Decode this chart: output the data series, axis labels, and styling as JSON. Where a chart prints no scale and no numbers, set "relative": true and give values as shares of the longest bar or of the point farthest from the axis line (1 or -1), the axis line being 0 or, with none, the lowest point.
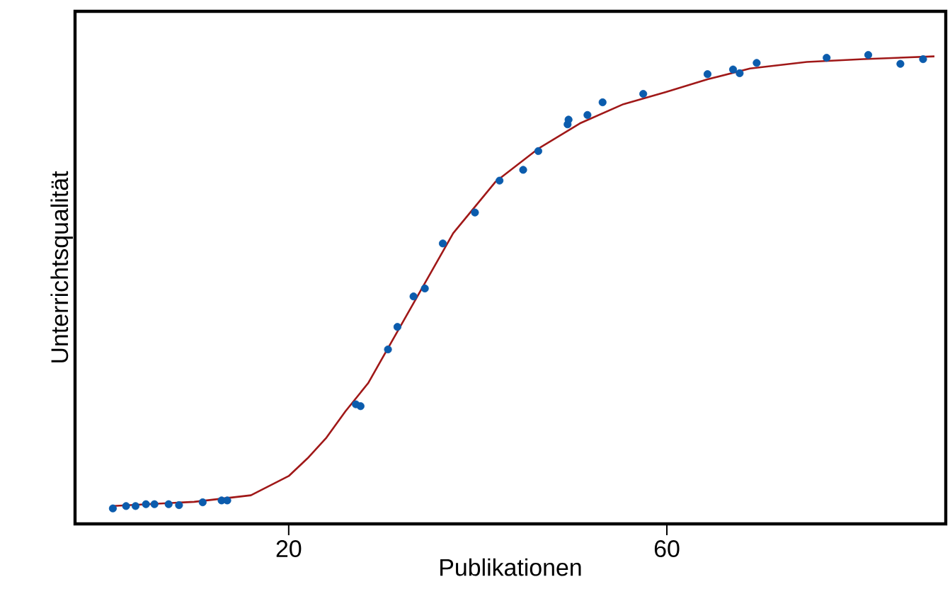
{
  "chart_data": {
    "type": "scatter",
    "xlabel": "Publikationen",
    "ylabel": "Unterrichtsqualität",
    "relative": true,
    "xlim": [
      -2.6,
      89.5
    ],
    "xticks": [
      20,
      60
    ],
    "series": [
      {
        "color": "#0b5cad",
        "marker": "circle",
        "x": [
          1.4,
          2.8,
          3.8,
          4.9,
          5.8,
          7.3,
          8.4,
          10.9,
          12.9,
          13.5,
          27.1,
          27.6,
          30.5,
          31.5,
          33.2,
          34.4,
          36.3,
          39.7,
          42.3,
          44.8,
          46.4,
          49.5,
          49.6,
          51.6,
          53.2,
          57.5,
          64.3,
          67.0,
          67.7,
          69.5,
          76.9,
          81.3,
          84.7,
          87.1
        ],
        "values": [
          0.033,
          0.038,
          0.038,
          0.042,
          0.042,
          0.042,
          0.04,
          0.046,
          0.05,
          0.05,
          0.255,
          0.251,
          0.372,
          0.42,
          0.485,
          0.502,
          0.598,
          0.664,
          0.732,
          0.755,
          0.795,
          0.852,
          0.862,
          0.872,
          0.899,
          0.917,
          0.959,
          0.969,
          0.961,
          0.983,
          0.994,
          1.0,
          0.981,
          0.991
        ]
      },
      {
        "type": "line",
        "marker": "none",
        "color": "#a01818",
        "x": [
          1.4,
          10,
          16,
          20,
          22,
          24,
          26,
          28.4,
          32.9,
          37.4,
          41.9,
          46.4,
          50.8,
          55.4,
          59.9,
          64.3,
          68.8,
          74.8,
          80.8,
          88.3
        ],
        "values": [
          0.038,
          0.047,
          0.061,
          0.102,
          0.14,
          0.184,
          0.24,
          0.3,
          0.46,
          0.62,
          0.73,
          0.8,
          0.854,
          0.895,
          0.921,
          0.948,
          0.971,
          0.985,
          0.991,
          0.997
        ]
      }
    ]
  }
}
